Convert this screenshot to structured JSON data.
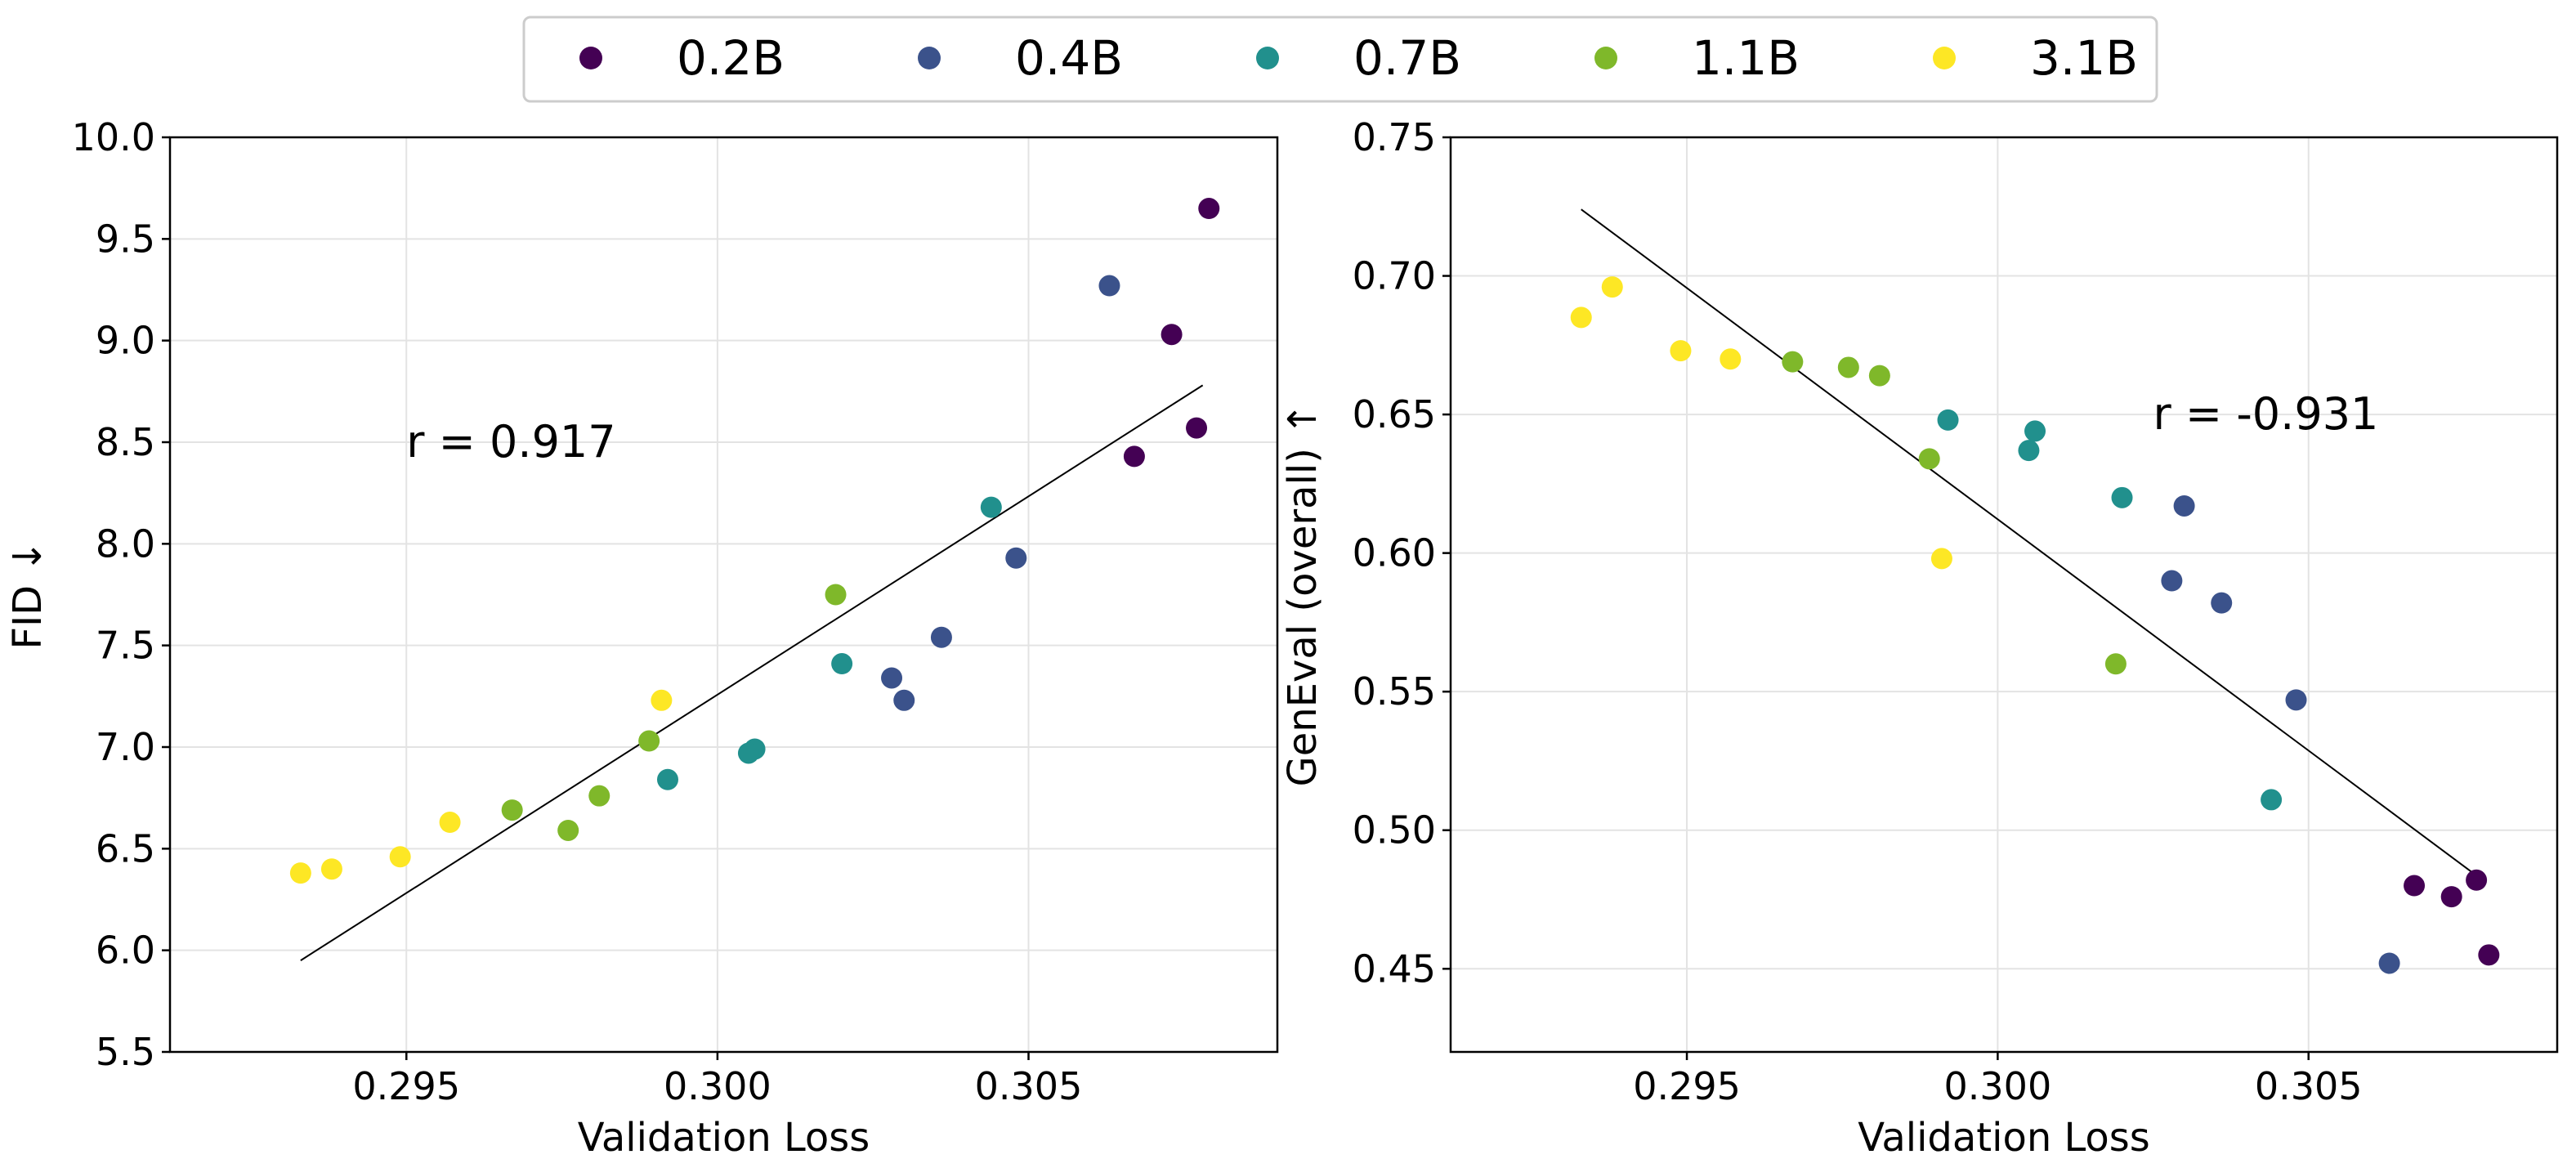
{
  "legend": {
    "placement": "top-center",
    "entries": [
      {
        "label": "0.2B",
        "color": "#440154"
      },
      {
        "label": "0.4B",
        "color": "#3b528b"
      },
      {
        "label": "0.7B",
        "color": "#21908d"
      },
      {
        "label": "1.1B",
        "color": "#7fb82a"
      },
      {
        "label": "3.1B",
        "color": "#fde725"
      }
    ]
  },
  "chart_data": [
    {
      "type": "scatter",
      "title": "",
      "xlabel": "Validation Loss",
      "ylabel": "FID ↓",
      "xlim": [
        0.2912,
        0.309
      ],
      "ylim": [
        5.5,
        10.0
      ],
      "xticks": [
        "0.295",
        "0.300",
        "0.305"
      ],
      "yticks": [
        "5.5",
        "6.0",
        "6.5",
        "7.0",
        "7.5",
        "8.0",
        "8.5",
        "9.0",
        "9.5",
        "10.0"
      ],
      "grid": true,
      "annotation": {
        "text": "r = 0.917",
        "x": 0.295,
        "y": 8.5
      },
      "fit_line": {
        "x": [
          0.2933,
          0.3078
        ],
        "y": [
          5.95,
          8.78
        ]
      },
      "series": [
        {
          "name": "0.2B",
          "points": [
            [
              0.3079,
              9.65
            ],
            [
              0.3073,
              9.03
            ],
            [
              0.3077,
              8.57
            ],
            [
              0.3067,
              8.43
            ]
          ]
        },
        {
          "name": "0.4B",
          "points": [
            [
              0.3063,
              9.27
            ],
            [
              0.3048,
              7.93
            ],
            [
              0.3036,
              7.54
            ],
            [
              0.3028,
              7.34
            ],
            [
              0.303,
              7.23
            ]
          ]
        },
        {
          "name": "0.7B",
          "points": [
            [
              0.3044,
              8.18
            ],
            [
              0.302,
              7.41
            ],
            [
              0.3006,
              6.99
            ],
            [
              0.3005,
              6.97
            ],
            [
              0.2992,
              6.84
            ]
          ]
        },
        {
          "name": "1.1B",
          "points": [
            [
              0.3019,
              7.75
            ],
            [
              0.2989,
              7.03
            ],
            [
              0.2967,
              6.69
            ],
            [
              0.2981,
              6.76
            ],
            [
              0.2976,
              6.59
            ]
          ]
        },
        {
          "name": "3.1B",
          "points": [
            [
              0.2991,
              7.23
            ],
            [
              0.2957,
              6.63
            ],
            [
              0.2949,
              6.46
            ],
            [
              0.2938,
              6.4
            ],
            [
              0.2933,
              6.38
            ]
          ]
        }
      ]
    },
    {
      "type": "scatter",
      "title": "",
      "xlabel": "Validation Loss",
      "ylabel": "GenEval (overall) ↑",
      "xlim": [
        0.2912,
        0.309
      ],
      "ylim": [
        0.42,
        0.75
      ],
      "xticks": [
        "0.295",
        "0.300",
        "0.305"
      ],
      "yticks": [
        "0.45",
        "0.50",
        "0.55",
        "0.60",
        "0.65",
        "0.70",
        "0.75"
      ],
      "grid": true,
      "annotation": {
        "text": "r = -0.931",
        "x": 0.3025,
        "y": 0.65
      },
      "fit_line": {
        "x": [
          0.2933,
          0.3078
        ],
        "y": [
          0.724,
          0.482
        ]
      },
      "series": [
        {
          "name": "0.2B",
          "points": [
            [
              0.3067,
              0.48
            ],
            [
              0.3073,
              0.476
            ],
            [
              0.3077,
              0.482
            ],
            [
              0.3079,
              0.455
            ]
          ]
        },
        {
          "name": "0.4B",
          "points": [
            [
              0.303,
              0.617
            ],
            [
              0.3028,
              0.59
            ],
            [
              0.3036,
              0.582
            ],
            [
              0.3048,
              0.547
            ],
            [
              0.3063,
              0.452
            ]
          ]
        },
        {
          "name": "0.7B",
          "points": [
            [
              0.2992,
              0.648
            ],
            [
              0.3005,
              0.637
            ],
            [
              0.3006,
              0.644
            ],
            [
              0.302,
              0.62
            ],
            [
              0.3044,
              0.511
            ]
          ]
        },
        {
          "name": "1.1B",
          "points": [
            [
              0.2967,
              0.669
            ],
            [
              0.2976,
              0.667
            ],
            [
              0.2981,
              0.664
            ],
            [
              0.2989,
              0.634
            ],
            [
              0.3019,
              0.56
            ]
          ]
        },
        {
          "name": "3.1B",
          "points": [
            [
              0.2933,
              0.685
            ],
            [
              0.2938,
              0.696
            ],
            [
              0.2949,
              0.673
            ],
            [
              0.2957,
              0.67
            ],
            [
              0.2991,
              0.598
            ]
          ]
        }
      ]
    }
  ]
}
